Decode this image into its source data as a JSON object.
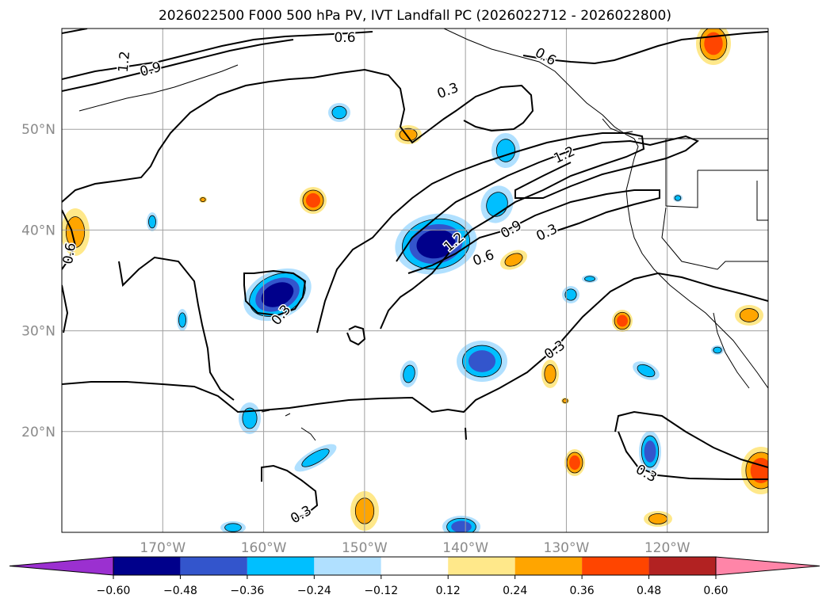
{
  "title": "2026022500 F000 500 hPa PV, IVT Landfall PC (2026022712 - 2026022800)",
  "map": {
    "lon_range": [
      -180,
      -110
    ],
    "lat_range": [
      10,
      60
    ],
    "lat_ticks": [
      {
        "value": 20,
        "label": "20°N"
      },
      {
        "value": 30,
        "label": "30°N"
      },
      {
        "value": 40,
        "label": "40°N"
      },
      {
        "value": 50,
        "label": "50°N"
      }
    ],
    "lon_ticks": [
      {
        "value": -170,
        "label": "170°W"
      },
      {
        "value": -160,
        "label": "160°W"
      },
      {
        "value": -150,
        "label": "150°W"
      },
      {
        "value": -140,
        "label": "140°W"
      },
      {
        "value": -130,
        "label": "130°W"
      },
      {
        "value": -120,
        "label": "120°W"
      }
    ],
    "grid": true,
    "contour_labels": [
      "0.3",
      "0.3",
      "0.3",
      "0.3",
      "0.3",
      "0.3",
      "0.6",
      "0.6",
      "0.6",
      "0.6",
      "0.9",
      "0.9",
      "1.2",
      "1.2",
      "1.2"
    ]
  },
  "colorbar": {
    "ticks": [
      "−0.60",
      "−0.48",
      "−0.36",
      "−0.24",
      "−0.12",
      "0.12",
      "0.24",
      "0.36",
      "0.48",
      "0.60"
    ],
    "colors": [
      "#9b30d0",
      "#00008b",
      "#3355cc",
      "#00bfff",
      "#b0e0ff",
      "#ffffff",
      "#ffe88a",
      "#ffa500",
      "#ff4500",
      "#b22222",
      "#ff85a8"
    ],
    "extend": "both"
  },
  "palette": {
    "dkblue": "#00008b",
    "mblue": "#3355cc",
    "cyan": "#00bfff",
    "ltblue": "#b0e0ff",
    "yellow": "#ffe88a",
    "orange": "#ffa500",
    "red": "#ff4500"
  }
}
